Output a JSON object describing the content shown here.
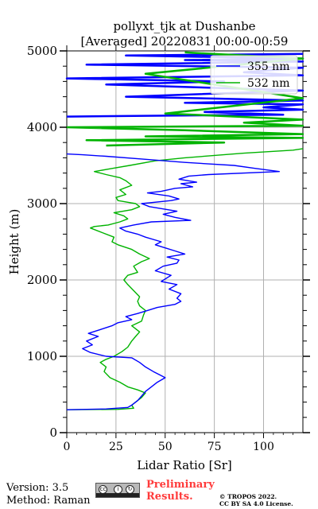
{
  "chart_data": {
    "type": "line",
    "title": "pollyxt_tjk at Dushanbe",
    "subtitle": "[Averaged] 20220831 00:00-00:59",
    "xlabel": "Lidar Ratio [Sr]",
    "ylabel": "Height (m)",
    "xlim": [
      0,
      120
    ],
    "ylim": [
      0,
      5000
    ],
    "xticks": [
      0,
      25,
      50,
      75,
      100
    ],
    "yticks": [
      0,
      1000,
      2000,
      3000,
      4000,
      5000
    ],
    "grid": true,
    "legend_position": "top-right",
    "series": [
      {
        "name": "355 nm",
        "color": "#0000ff",
        "points": [
          [
            0,
            300
          ],
          [
            20,
            310
          ],
          [
            31,
            330
          ],
          [
            33,
            360
          ],
          [
            36,
            420
          ],
          [
            38,
            480
          ],
          [
            40,
            540
          ],
          [
            43,
            600
          ],
          [
            46,
            660
          ],
          [
            50,
            720
          ],
          [
            47,
            760
          ],
          [
            44,
            800
          ],
          [
            40,
            860
          ],
          [
            37,
            920
          ],
          [
            33,
            980
          ],
          [
            20,
            1000
          ],
          [
            12,
            1050
          ],
          [
            8,
            1100
          ],
          [
            13,
            1150
          ],
          [
            10,
            1200
          ],
          [
            16,
            1260
          ],
          [
            11,
            1300
          ],
          [
            17,
            1350
          ],
          [
            23,
            1400
          ],
          [
            26,
            1440
          ],
          [
            33,
            1480
          ],
          [
            30,
            1520
          ],
          [
            36,
            1560
          ],
          [
            41,
            1600
          ],
          [
            46,
            1640
          ],
          [
            55,
            1680
          ],
          [
            58,
            1720
          ],
          [
            56,
            1760
          ],
          [
            58,
            1820
          ],
          [
            52,
            1880
          ],
          [
            56,
            1940
          ],
          [
            48,
            1980
          ],
          [
            53,
            2060
          ],
          [
            45,
            2120
          ],
          [
            49,
            2180
          ],
          [
            56,
            2220
          ],
          [
            57,
            2260
          ],
          [
            51,
            2300
          ],
          [
            60,
            2340
          ],
          [
            55,
            2380
          ],
          [
            50,
            2420
          ],
          [
            45,
            2460
          ],
          [
            48,
            2500
          ],
          [
            40,
            2560
          ],
          [
            36,
            2600
          ],
          [
            30,
            2640
          ],
          [
            27,
            2680
          ],
          [
            34,
            2720
          ],
          [
            43,
            2760
          ],
          [
            63,
            2780
          ],
          [
            55,
            2820
          ],
          [
            49,
            2860
          ],
          [
            56,
            2900
          ],
          [
            42,
            2960
          ],
          [
            38,
            3000
          ],
          [
            53,
            3040
          ],
          [
            57,
            3060
          ],
          [
            52,
            3100
          ],
          [
            41,
            3140
          ],
          [
            48,
            3160
          ],
          [
            55,
            3200
          ],
          [
            64,
            3220
          ],
          [
            58,
            3260
          ],
          [
            66,
            3280
          ],
          [
            57,
            3320
          ],
          [
            62,
            3360
          ],
          [
            72,
            3380
          ],
          [
            108,
            3420
          ],
          [
            96,
            3460
          ],
          [
            85,
            3500
          ],
          [
            60,
            3540
          ],
          [
            40,
            3580
          ],
          [
            20,
            3620
          ],
          [
            8,
            3640
          ],
          [
            0,
            3650
          ]
        ]
      },
      {
        "name": "532 nm",
        "color": "#00b300",
        "points": [
          [
            0,
            300
          ],
          [
            26,
            305
          ],
          [
            34,
            320
          ],
          [
            33,
            360
          ],
          [
            35,
            400
          ],
          [
            38,
            460
          ],
          [
            40,
            520
          ],
          [
            36,
            560
          ],
          [
            31,
            600
          ],
          [
            27,
            660
          ],
          [
            22,
            720
          ],
          [
            19,
            800
          ],
          [
            20,
            860
          ],
          [
            17,
            920
          ],
          [
            20,
            960
          ],
          [
            24,
            1000
          ],
          [
            28,
            1060
          ],
          [
            31,
            1120
          ],
          [
            33,
            1200
          ],
          [
            35,
            1260
          ],
          [
            37,
            1320
          ],
          [
            33,
            1400
          ],
          [
            38,
            1460
          ],
          [
            39,
            1540
          ],
          [
            40,
            1600
          ],
          [
            37,
            1660
          ],
          [
            36,
            1720
          ],
          [
            37,
            1780
          ],
          [
            34,
            1860
          ],
          [
            31,
            1940
          ],
          [
            29,
            2000
          ],
          [
            31,
            2060
          ],
          [
            36,
            2100
          ],
          [
            34,
            2180
          ],
          [
            38,
            2240
          ],
          [
            42,
            2280
          ],
          [
            37,
            2340
          ],
          [
            33,
            2400
          ],
          [
            26,
            2460
          ],
          [
            23,
            2500
          ],
          [
            24,
            2560
          ],
          [
            18,
            2620
          ],
          [
            12,
            2680
          ],
          [
            14,
            2700
          ],
          [
            21,
            2720
          ],
          [
            27,
            2760
          ],
          [
            31,
            2800
          ],
          [
            29,
            2840
          ],
          [
            24,
            2880
          ],
          [
            33,
            2920
          ],
          [
            37,
            2960
          ],
          [
            35,
            3000
          ],
          [
            26,
            3040
          ],
          [
            25,
            3080
          ],
          [
            30,
            3120
          ],
          [
            27,
            3180
          ],
          [
            33,
            3240
          ],
          [
            30,
            3300
          ],
          [
            27,
            3340
          ],
          [
            20,
            3380
          ],
          [
            14,
            3420
          ],
          [
            23,
            3460
          ],
          [
            32,
            3500
          ],
          [
            45,
            3560
          ],
          [
            60,
            3600
          ],
          [
            90,
            3660
          ],
          [
            115,
            3700
          ],
          [
            120,
            3720
          ]
        ]
      }
    ],
    "noise_blue": [
      [
        0,
        4140
      ],
      [
        40,
        4150
      ],
      [
        110,
        4165
      ],
      [
        70,
        4200
      ],
      [
        120,
        4230
      ],
      [
        100,
        4260
      ],
      [
        120,
        4300
      ],
      [
        60,
        4320
      ],
      [
        120,
        4350
      ],
      [
        30,
        4400
      ],
      [
        120,
        4480
      ],
      [
        20,
        4560
      ],
      [
        80,
        4600
      ],
      [
        0,
        4640
      ],
      [
        120,
        4680
      ],
      [
        90,
        4720
      ],
      [
        120,
        4780
      ],
      [
        10,
        4820
      ],
      [
        120,
        4860
      ],
      [
        60,
        4880
      ],
      [
        120,
        4900
      ],
      [
        30,
        4940
      ],
      [
        120,
        4960
      ]
    ],
    "noise_green": [
      [
        20,
        3760
      ],
      [
        80,
        3800
      ],
      [
        10,
        3830
      ],
      [
        120,
        3860
      ],
      [
        40,
        3880
      ],
      [
        120,
        3910
      ],
      [
        60,
        3960
      ],
      [
        0,
        4000
      ],
      [
        120,
        4020
      ],
      [
        90,
        4060
      ],
      [
        120,
        4100
      ],
      [
        50,
        4180
      ],
      [
        120,
        4380
      ],
      [
        40,
        4700
      ],
      [
        120,
        4900
      ],
      [
        60,
        4980
      ]
    ]
  },
  "footer": {
    "version": "Version: 3.5",
    "method": "Method: Raman",
    "preliminary_line1": "Preliminary",
    "preliminary_line2": "Results.",
    "copyright_line1": "© TROPOS 2022.",
    "copyright_line2": "CC BY SA 4.0 License."
  }
}
